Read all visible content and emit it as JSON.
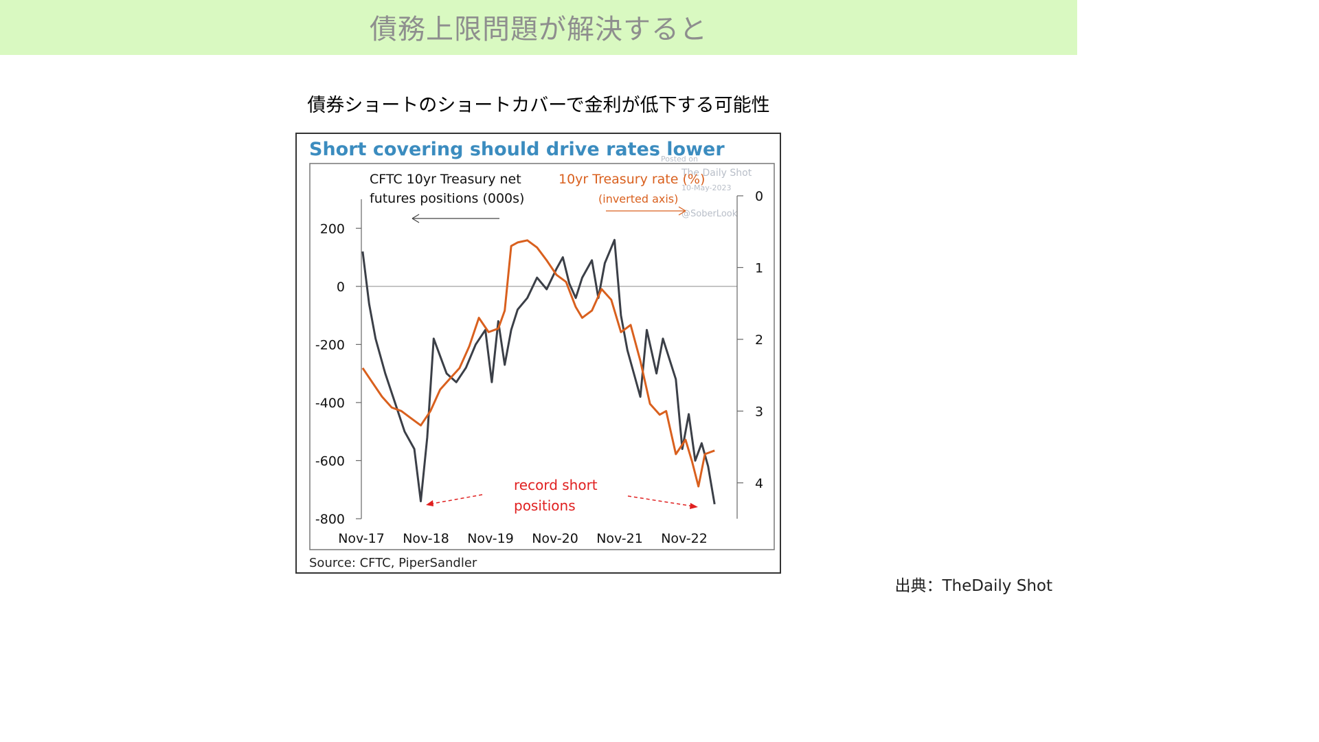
{
  "page": {
    "title": "債務上限問題が解決すると",
    "subtitle": "債券ショートのショートカバーで金利が低下する可能性",
    "credit": "出典：TheDaily Shot"
  },
  "chart_data": {
    "type": "line",
    "title": "Short covering should drive rates lower",
    "source": "Source: CFTC, PiperSandler",
    "watermark": [
      "Posted on",
      "The Daily Shot",
      "10-May-2023",
      "@SoberLook"
    ],
    "x_tick_labels": [
      "Nov-17",
      "Nov-18",
      "Nov-19",
      "Nov-20",
      "Nov-21",
      "Nov-22"
    ],
    "left_axis": {
      "label_lines": [
        "CFTC 10yr Treasury net",
        "futures positions (000s)"
      ],
      "ticks": [
        200,
        0,
        -200,
        -400,
        -600,
        -800
      ],
      "ylim": [
        -800,
        300
      ]
    },
    "right_axis": {
      "label_lines": [
        "10yr Treasury rate  (%)",
        "(inverted axis)"
      ],
      "ticks": [
        0,
        1,
        2,
        3,
        4
      ],
      "ylim": [
        0,
        4.5
      ],
      "inverted": true
    },
    "annotation": [
      "record short",
      "positions"
    ],
    "colors": {
      "positions": "#3b3f47",
      "rate": "#d9601e",
      "title": "#3b8cbf",
      "annotation": "#e02020"
    },
    "series": [
      {
        "name": "CFTC 10yr Treasury net futures positions (000s)",
        "axis": "left",
        "x": [
          2017.9,
          2018.0,
          2018.1,
          2018.25,
          2018.4,
          2018.55,
          2018.7,
          2018.8,
          2018.9,
          2019.0,
          2019.1,
          2019.2,
          2019.35,
          2019.5,
          2019.65,
          2019.8,
          2019.9,
          2020.0,
          2020.1,
          2020.2,
          2020.3,
          2020.45,
          2020.6,
          2020.75,
          2020.9,
          2021.0,
          2021.1,
          2021.2,
          2021.3,
          2021.45,
          2021.55,
          2021.65,
          2021.8,
          2021.9,
          2022.0,
          2022.1,
          2022.2,
          2022.3,
          2022.45,
          2022.55,
          2022.65,
          2022.75,
          2022.85,
          2022.95,
          2023.05,
          2023.15,
          2023.25,
          2023.35
        ],
        "values": [
          120,
          -60,
          -180,
          -300,
          -400,
          -500,
          -560,
          -740,
          -520,
          -180,
          -240,
          -300,
          -330,
          -280,
          -200,
          -150,
          -330,
          -120,
          -270,
          -150,
          -80,
          -40,
          30,
          -10,
          60,
          100,
          10,
          -40,
          30,
          90,
          -40,
          80,
          160,
          -100,
          -220,
          -300,
          -380,
          -150,
          -300,
          -180,
          -250,
          -320,
          -560,
          -440,
          -600,
          -540,
          -620,
          -750
        ]
      },
      {
        "name": "10yr Treasury rate (%)",
        "axis": "right",
        "x": [
          2017.9,
          2018.05,
          2018.2,
          2018.35,
          2018.5,
          2018.65,
          2018.8,
          2018.95,
          2019.1,
          2019.25,
          2019.4,
          2019.55,
          2019.7,
          2019.85,
          2020.0,
          2020.1,
          2020.2,
          2020.3,
          2020.45,
          2020.6,
          2020.75,
          2020.9,
          2021.05,
          2021.2,
          2021.3,
          2021.45,
          2021.6,
          2021.75,
          2021.9,
          2022.05,
          2022.2,
          2022.35,
          2022.5,
          2022.6,
          2022.75,
          2022.9,
          2023.0,
          2023.1,
          2023.2,
          2023.35
        ],
        "values": [
          2.4,
          2.6,
          2.8,
          2.95,
          3.0,
          3.1,
          3.2,
          3.0,
          2.7,
          2.55,
          2.4,
          2.1,
          1.7,
          1.9,
          1.85,
          1.6,
          0.7,
          0.65,
          0.62,
          0.72,
          0.9,
          1.1,
          1.2,
          1.55,
          1.7,
          1.6,
          1.3,
          1.45,
          1.9,
          1.8,
          2.3,
          2.9,
          3.05,
          3.0,
          3.6,
          3.4,
          3.7,
          4.05,
          3.6,
          3.55
        ]
      }
    ]
  }
}
